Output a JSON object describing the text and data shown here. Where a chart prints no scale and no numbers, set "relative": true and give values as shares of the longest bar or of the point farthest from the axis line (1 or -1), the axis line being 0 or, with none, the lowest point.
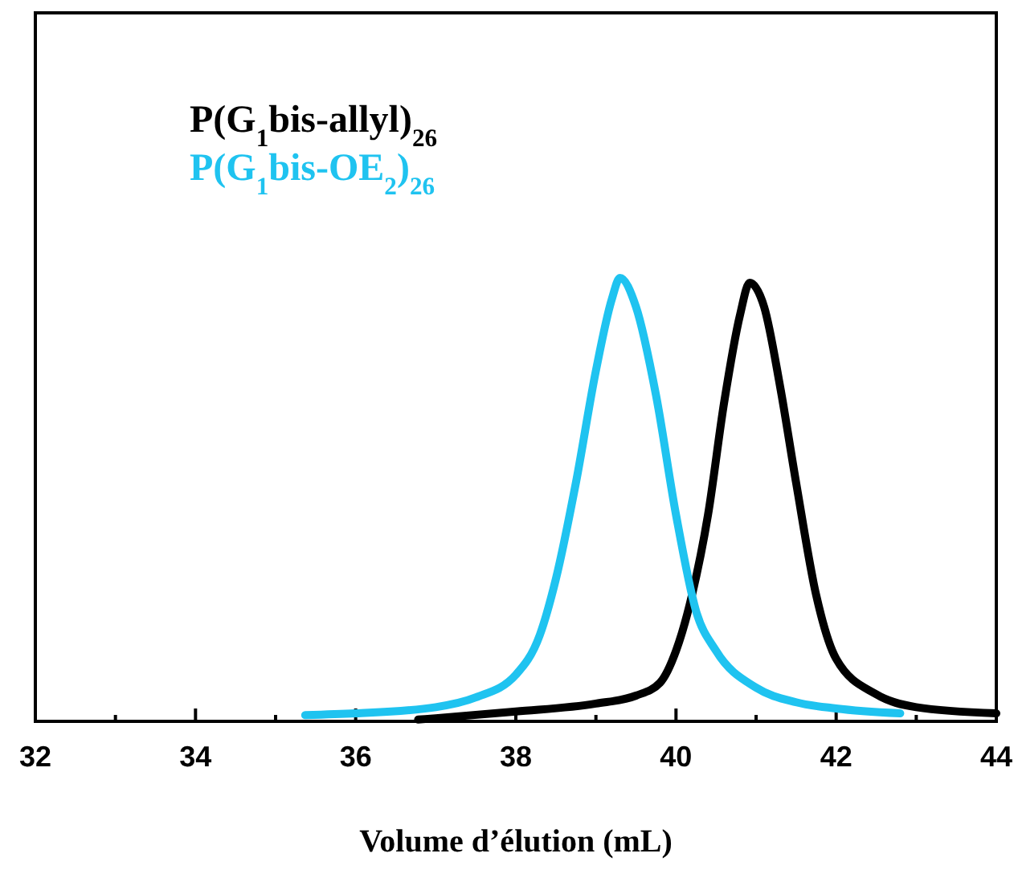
{
  "chart_data": {
    "type": "line",
    "xlabel": "Volume d’élution (mL)",
    "relative": true,
    "xlim": [
      32,
      44
    ],
    "xticks": [
      32,
      34,
      36,
      38,
      40,
      42,
      44
    ],
    "legend": "top left",
    "line_style": "solid",
    "marker": "none",
    "grid": false,
    "series": [
      {
        "name": "P(G$_{1}$bis-allyl)$_{26}$",
        "color": "#000000",
        "x": [
          36.78,
          37,
          38,
          39,
          39.5,
          39.8,
          40,
          40.2,
          40.4,
          40.6,
          40.8,
          40.92,
          41.1,
          41.3,
          41.5,
          41.75,
          42,
          42.5,
          43,
          44
        ],
        "values": [
          0.004,
          0.007,
          0.022,
          0.04,
          0.058,
          0.087,
          0.159,
          0.285,
          0.466,
          0.718,
          0.917,
          0.989,
          0.935,
          0.755,
          0.538,
          0.285,
          0.141,
          0.061,
          0.032,
          0.018
        ]
      },
      {
        "name": "P(G$_{1}$bis-OE$_{2}$)$_{26}$",
        "color": "#1fc3f0",
        "x": [
          35.37,
          36,
          37,
          37.5,
          38,
          38.3,
          38.5,
          38.75,
          39,
          39.2,
          39.3,
          39.5,
          39.75,
          40,
          40.25,
          40.5,
          41,
          41.5,
          42,
          42.8
        ],
        "values": [
          0.014,
          0.018,
          0.032,
          0.054,
          0.105,
          0.195,
          0.321,
          0.538,
          0.791,
          0.953,
          1,
          0.935,
          0.736,
          0.466,
          0.249,
          0.159,
          0.076,
          0.043,
          0.029,
          0.018
        ]
      }
    ]
  }
}
